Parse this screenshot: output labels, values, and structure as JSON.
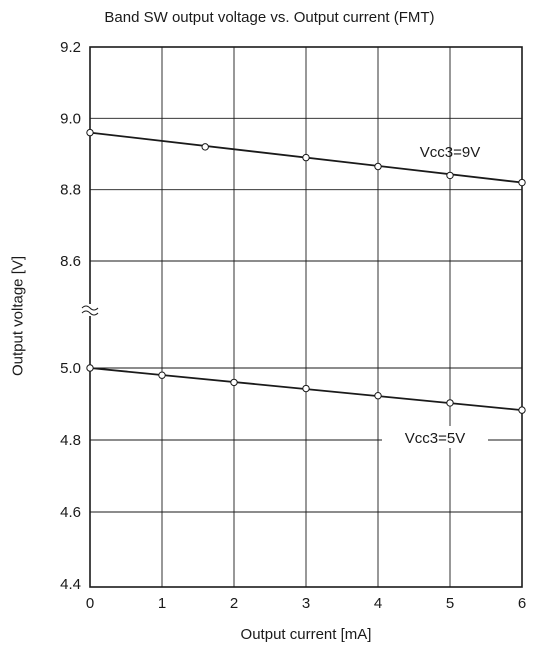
{
  "chart_data": {
    "type": "line",
    "title": "Band SW output voltage vs. Output current (FMT)",
    "xlabel": "Output current [mA]",
    "ylabel": "Output voltage [V]",
    "x_ticks": [
      "0",
      "1",
      "2",
      "3",
      "4",
      "5",
      "6"
    ],
    "xlim": [
      0,
      6
    ],
    "axis_break": "≈",
    "grid": true,
    "upper_panel": {
      "ylim": [
        8.6,
        9.2
      ],
      "y_ticks": [
        "9.2",
        "9.0",
        "8.8",
        "8.6"
      ]
    },
    "lower_panel": {
      "ylim": [
        4.4,
        5.1
      ],
      "y_ticks": [
        "5.0",
        "4.8",
        "4.6",
        "4.4"
      ]
    },
    "series": [
      {
        "name": "Vcc3=9V",
        "panel": "upper",
        "x": [
          0,
          1.6,
          3,
          4,
          5,
          6
        ],
        "y": [
          8.96,
          8.92,
          8.89,
          8.865,
          8.84,
          8.82
        ]
      },
      {
        "name": "Vcc3=5V",
        "panel": "lower",
        "x": [
          0,
          1,
          2,
          3,
          4,
          5,
          6
        ],
        "y": [
          5.0,
          4.98,
          4.96,
          4.943,
          4.923,
          4.903,
          4.883
        ]
      }
    ]
  },
  "colors": {
    "ink": "#1a1a1a",
    "background": "#ffffff",
    "grid": "#1a1a1a"
  }
}
